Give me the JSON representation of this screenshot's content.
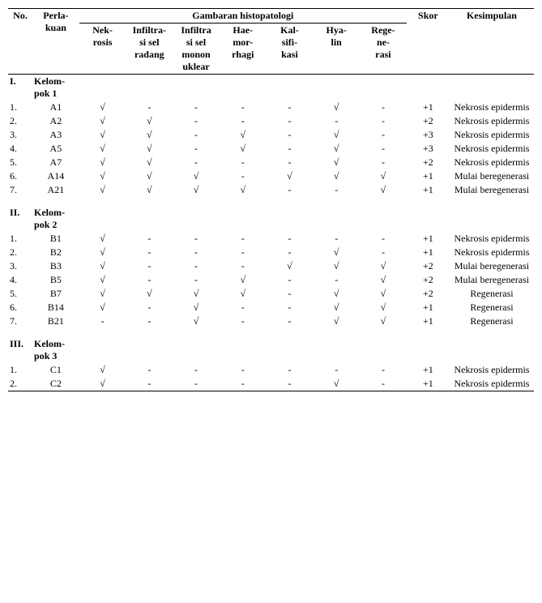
{
  "table": {
    "headers": {
      "gambaran": "Gambaran histopatologi",
      "no": "No.",
      "perlakuan": "Perla-\nkuan",
      "features": [
        "Nek-\nrosis",
        "Infiltra-\nsi sel\nradang",
        "Infiltra\nsi sel\nmonon\nuklear",
        "Hae-\nmor-\nrhagi",
        "Kal-\nsifi-\nkasi",
        "Hya-\nlin",
        "Rege-\nne-\nrasi"
      ],
      "skor": "Skor",
      "kesimpulan": "Kesimpulan"
    },
    "groups": [
      {
        "id": "I.",
        "label": "Kelom-\npok 1",
        "rows": [
          {
            "n": "1.",
            "p": "A1",
            "f": [
              "√",
              "-",
              "-",
              "-",
              "-",
              "√",
              "-"
            ],
            "s": "+1",
            "k": "Nekrosis epidermis"
          },
          {
            "n": "2.",
            "p": "A2",
            "f": [
              "√",
              "√",
              "-",
              "-",
              "-",
              "-",
              "-"
            ],
            "s": "+2",
            "k": "Nekrosis epidermis"
          },
          {
            "n": "3.",
            "p": "A3",
            "f": [
              "√",
              "√",
              "-",
              "√",
              "-",
              "√",
              "-"
            ],
            "s": "+3",
            "k": "Nekrosis epidermis"
          },
          {
            "n": "4.",
            "p": "A5",
            "f": [
              "√",
              "√",
              "-",
              "√",
              "-",
              "√",
              "-"
            ],
            "s": "+3",
            "k": "Nekrosis epidermis"
          },
          {
            "n": "5.",
            "p": "A7",
            "f": [
              "√",
              "√",
              "-",
              "-",
              "-",
              "√",
              "-"
            ],
            "s": "+2",
            "k": "Nekrosis epidermis"
          },
          {
            "n": "6.",
            "p": "A14",
            "f": [
              "√",
              "√",
              "√",
              "-",
              "√",
              "√",
              "√"
            ],
            "s": "+1",
            "k": "Mulai beregenerasi"
          },
          {
            "n": "7.",
            "p": "A21",
            "f": [
              "√",
              "√",
              "√",
              "√",
              "-",
              "-",
              "√"
            ],
            "s": "+1",
            "k": "Mulai beregenerasi"
          }
        ]
      },
      {
        "id": "II.",
        "label": "Kelom-\npok 2",
        "rows": [
          {
            "n": "1.",
            "p": "B1",
            "f": [
              "√",
              "-",
              "-",
              "-",
              "-",
              "-",
              "-"
            ],
            "s": "+1",
            "k": "Nekrosis epidermis"
          },
          {
            "n": "2.",
            "p": "B2",
            "f": [
              "√",
              "-",
              "-",
              "-",
              "-",
              "√",
              "-"
            ],
            "s": "+1",
            "k": "Nekrosis epidermis"
          },
          {
            "n": "3.",
            "p": "B3",
            "f": [
              "√",
              "-",
              "-",
              "-",
              "√",
              "√",
              "√"
            ],
            "s": "+2",
            "k": "Mulai beregenerasi"
          },
          {
            "n": "4.",
            "p": "B5",
            "f": [
              "√",
              "-",
              "-",
              "√",
              "-",
              "-",
              "√"
            ],
            "s": "+2",
            "k": "Mulai beregenerasi"
          },
          {
            "n": "5.",
            "p": "B7",
            "f": [
              "√",
              "√",
              "√",
              "√",
              "-",
              "√",
              "√"
            ],
            "s": "+2",
            "k": "Regenerasi"
          },
          {
            "n": "6.",
            "p": "B14",
            "f": [
              "√",
              "-",
              "√",
              "-",
              "-",
              "√",
              "√"
            ],
            "s": "+1",
            "k": "Regenerasi"
          },
          {
            "n": "7.",
            "p": "B21",
            "f": [
              "-",
              "-",
              "√",
              "-",
              "-",
              "√",
              "√"
            ],
            "s": "+1",
            "k": "Regenerasi"
          }
        ]
      },
      {
        "id": "III.",
        "label": "Kelom-\npok 3",
        "rows": [
          {
            "n": "1.",
            "p": "C1",
            "f": [
              "√",
              "-",
              "-",
              "-",
              "-",
              "-",
              "-"
            ],
            "s": "+1",
            "k": "Nekrosis epidermis"
          },
          {
            "n": "2.",
            "p": "C2",
            "f": [
              "√",
              "-",
              "-",
              "-",
              "-",
              "√",
              "-"
            ],
            "s": "+1",
            "k": "Nekrosis epidermis"
          }
        ]
      }
    ]
  },
  "style": {
    "font_family": "Times New Roman",
    "font_size_pt": 12,
    "text_color": "#000000",
    "background_color": "#ffffff",
    "border_color": "#000000",
    "check_glyph": "√",
    "dash_glyph": "-"
  }
}
